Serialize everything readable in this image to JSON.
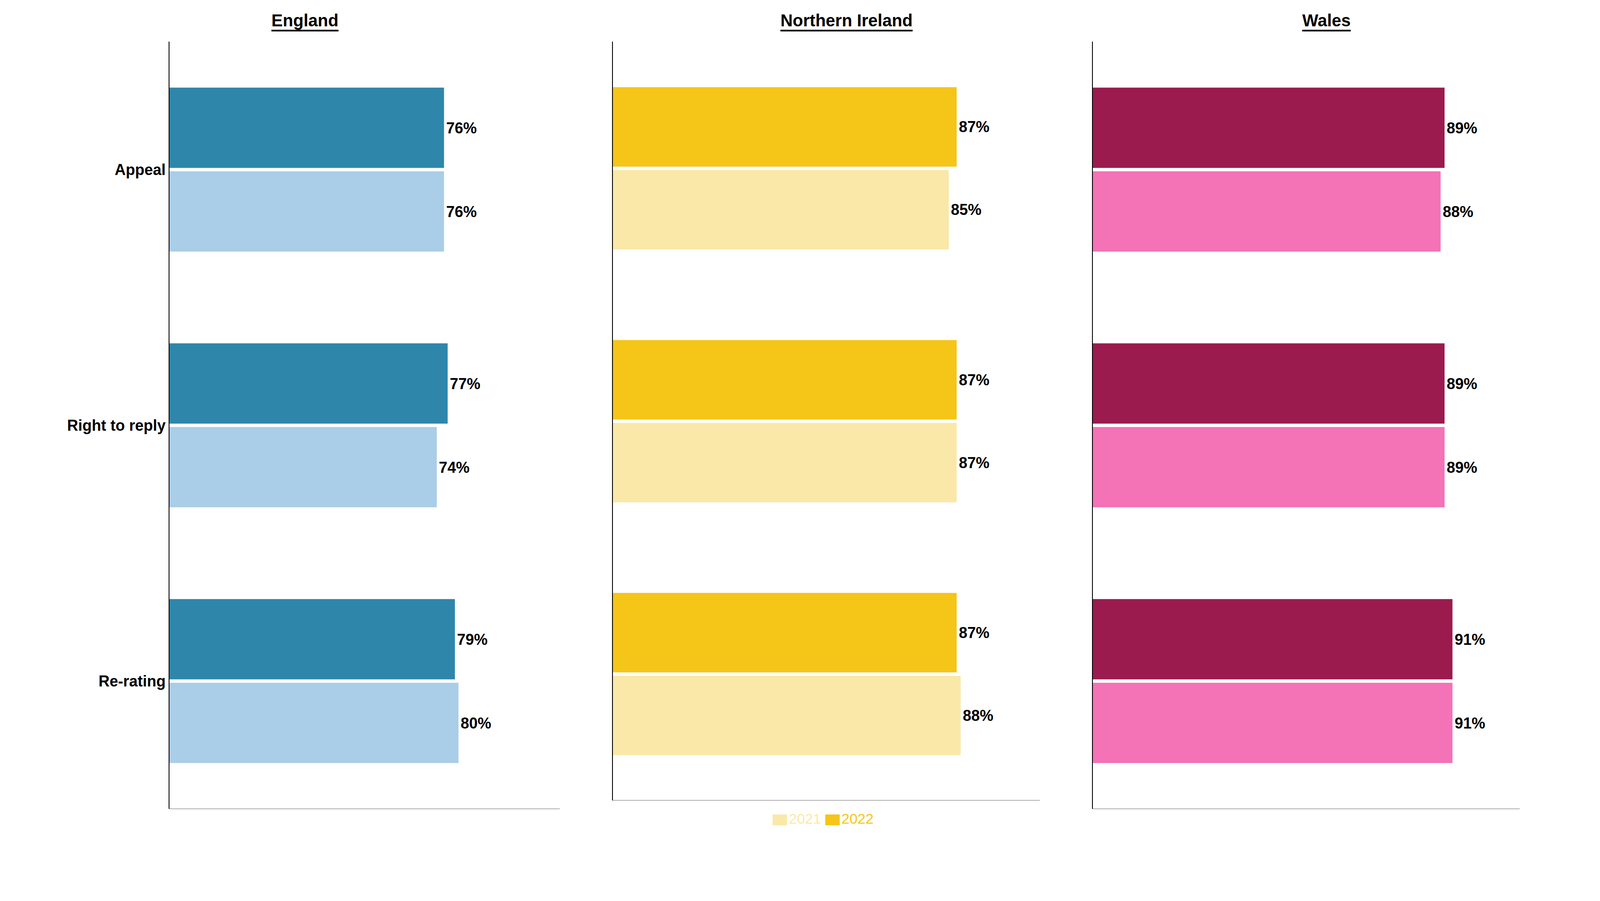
{
  "chart_data": [
    {
      "type": "bar",
      "title": "England",
      "orientation": "horizontal",
      "categories": [
        "Appeal",
        "Right to reply",
        "Re-rating"
      ],
      "series": [
        {
          "name": "2022",
          "color": "#2E86AB",
          "values": [
            76,
            77,
            79
          ],
          "value_labels": [
            "76%",
            "77%",
            "79%"
          ]
        },
        {
          "name": "2021",
          "color": "#AACDE8",
          "values": [
            76,
            74,
            80
          ],
          "value_labels": [
            "76%",
            "74%",
            "80%"
          ]
        }
      ],
      "xlim": [
        0,
        108
      ],
      "grid": false,
      "data_labels": true,
      "tick_labels": "y"
    },
    {
      "type": "bar",
      "title": "Northern Ireland",
      "orientation": "horizontal",
      "categories": [
        "Appeal",
        "Right to reply",
        "Re-rating"
      ],
      "series": [
        {
          "name": "2022",
          "color": "#F5C518",
          "values": [
            87,
            87,
            87
          ],
          "value_labels": [
            "87%",
            "87%",
            "87%"
          ]
        },
        {
          "name": "2021",
          "color": "#FAE8A8",
          "values": [
            85,
            87,
            88
          ],
          "value_labels": [
            "85%",
            "87%",
            "88%"
          ]
        }
      ],
      "xlim": [
        0,
        108
      ],
      "grid": false,
      "data_labels": true,
      "tick_labels": false,
      "legend": "bottom"
    },
    {
      "type": "bar",
      "title": "Wales",
      "orientation": "horizontal",
      "categories": [
        "Appeal",
        "Right to reply",
        "Re-rating"
      ],
      "series": [
        {
          "name": "2022",
          "color": "#9B1B4E",
          "values": [
            89,
            89,
            91
          ],
          "value_labels": [
            "89%",
            "89%",
            "91%"
          ]
        },
        {
          "name": "2021",
          "color": "#F472B6",
          "values": [
            88,
            89,
            91
          ],
          "value_labels": [
            "88%",
            "89%",
            "91%"
          ]
        }
      ],
      "xlim": [
        0,
        108
      ],
      "grid": false,
      "data_labels": true,
      "tick_labels": false
    }
  ]
}
